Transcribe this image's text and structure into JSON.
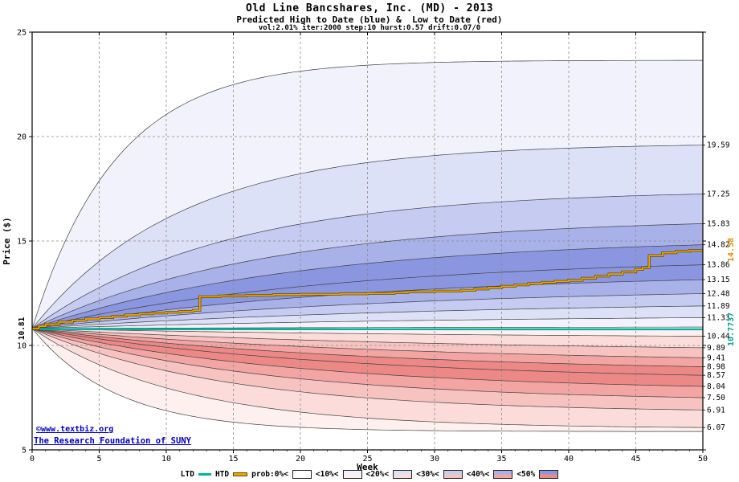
{
  "title": {
    "line1": "Old Line Bancshares, Inc. (MD) - 2013",
    "line2": "Predicted High to Date (blue) &  Low to Date (red)",
    "line3": "vol:2.01% iter:2000 step:10 hurst:0.57 drift:0.07/0"
  },
  "axes": {
    "x_label": "Week",
    "y_label": "Price ($)",
    "x_ticks": [
      0,
      5,
      10,
      15,
      20,
      25,
      30,
      35,
      40,
      45,
      50
    ],
    "y_ticks": [
      5,
      10,
      15,
      20,
      25
    ]
  },
  "start_label": "10.81",
  "htd_end_label": "14.58",
  "ltd_end_label": "10.7737",
  "credits": {
    "line1": "©www.textbiz.org",
    "line2": "The Research Foundation of SUNY"
  },
  "legend": {
    "ltd": "LTD",
    "htd": "HTD",
    "prob_labels": [
      "prob:0%<",
      "<10%<",
      "<20%<",
      "<30%<",
      "<40%<",
      "<50%"
    ]
  },
  "colors": {
    "htd": "#f0a500",
    "htd_dark": "#5f4a00",
    "ltd": "#00b3a1",
    "grid": "#8a8a8a",
    "boundary": "#404040",
    "label_orange": "#d98e00",
    "label_teal": "#00a092",
    "credit_blue": "#0000bb",
    "blue_shades": [
      "#f1f2fb",
      "#dde1f7",
      "#c5cbf1",
      "#a9b1e9",
      "#8b96e0"
    ],
    "red_shades": [
      "#fdf0ef",
      "#fbdcda",
      "#f7c3c1",
      "#f2a5a3",
      "#ec8886"
    ]
  },
  "chart_data": {
    "type": "area",
    "subtype": "monte-carlo-fan",
    "title": "Old Line Bancshares, Inc. (MD) - 2013",
    "subtitle": "Predicted High to Date (blue) & Low to Date (red)",
    "params_text": "vol:2.01% iter:2000 step:10 hurst:0.57 drift:0.07/0",
    "xlabel": "Week",
    "ylabel": "Price ($)",
    "x_range": [
      0,
      50
    ],
    "y_range": [
      5,
      25
    ],
    "grid": true,
    "legend_position": "bottom",
    "start_value": 10.81,
    "high_fan": {
      "name": "Predicted High to Date probability bands (blue)",
      "percentiles": [
        0,
        10,
        20,
        30,
        40,
        50,
        60,
        70,
        80,
        90,
        100
      ],
      "end_values": [
        23.65,
        19.59,
        17.25,
        15.83,
        14.82,
        13.86,
        13.15,
        12.48,
        11.89,
        11.33,
        10.88
      ],
      "labels": [
        null,
        "19.59",
        "17.25",
        "15.83",
        "14.82",
        "13.86",
        "13.15",
        "12.48",
        "11.89",
        "11.33",
        null
      ],
      "k": [
        8,
        4.5,
        3.5,
        2.9,
        2.5,
        2.2,
        2.0,
        1.8,
        1.6,
        1.45,
        1.2
      ]
    },
    "low_fan": {
      "name": "Predicted Low to Date probability bands (red)",
      "percentiles": [
        100,
        90,
        80,
        70,
        60,
        50,
        40,
        30,
        20,
        10,
        0
      ],
      "end_values": [
        10.75,
        10.44,
        9.89,
        9.41,
        8.98,
        8.57,
        8.04,
        7.5,
        6.91,
        6.07,
        5.88
      ],
      "labels": [
        null,
        "10.44",
        "9.89",
        "9.41",
        "8.98",
        "8.57",
        "8.04",
        "7.50",
        "6.91",
        "6.07",
        null
      ],
      "k": [
        1.2,
        1.45,
        1.6,
        1.8,
        2.0,
        2.2,
        2.5,
        2.9,
        3.5,
        4.5,
        8
      ]
    },
    "htd_series": {
      "name": "HTD",
      "final_value": 14.58,
      "steps": [
        [
          0,
          10.81
        ],
        [
          0.5,
          10.92
        ],
        [
          1,
          11.02
        ],
        [
          2,
          11.12
        ],
        [
          3,
          11.2
        ],
        [
          4,
          11.27
        ],
        [
          5,
          11.33
        ],
        [
          6,
          11.4
        ],
        [
          7,
          11.46
        ],
        [
          8,
          11.51
        ],
        [
          9,
          11.55
        ],
        [
          10,
          11.59
        ],
        [
          11,
          11.63
        ],
        [
          12,
          11.68
        ],
        [
          12.5,
          12.33
        ],
        [
          14,
          12.37
        ],
        [
          16,
          12.4
        ],
        [
          18,
          12.43
        ],
        [
          20,
          12.45
        ],
        [
          23,
          12.47
        ],
        [
          25,
          12.49
        ],
        [
          27,
          12.53
        ],
        [
          28,
          12.57
        ],
        [
          30,
          12.6
        ],
        [
          32,
          12.64
        ],
        [
          33,
          12.7
        ],
        [
          34,
          12.77
        ],
        [
          35,
          12.83
        ],
        [
          36,
          12.9
        ],
        [
          37,
          12.96
        ],
        [
          38,
          13.02
        ],
        [
          39,
          13.07
        ],
        [
          40,
          13.12
        ],
        [
          41,
          13.22
        ],
        [
          42,
          13.32
        ],
        [
          43,
          13.42
        ],
        [
          44,
          13.52
        ],
        [
          45,
          13.64
        ],
        [
          45.5,
          13.72
        ],
        [
          46,
          14.3
        ],
        [
          47,
          14.44
        ],
        [
          48,
          14.51
        ],
        [
          49,
          14.55
        ],
        [
          50,
          14.58
        ]
      ]
    },
    "ltd_series": {
      "name": "LTD",
      "final_value": 10.7737,
      "points": [
        [
          0,
          10.81
        ],
        [
          0.7,
          10.79
        ],
        [
          2,
          10.778
        ],
        [
          50,
          10.7737
        ]
      ]
    }
  }
}
